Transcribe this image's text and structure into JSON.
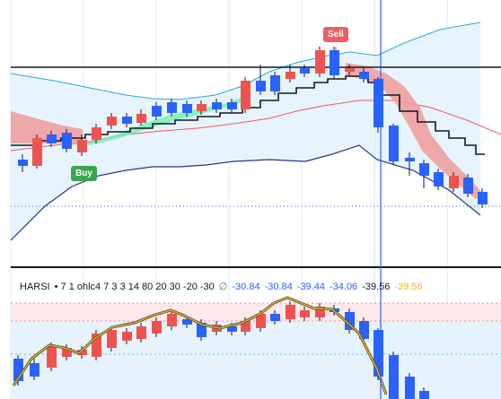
{
  "signals": {
    "sell": "Sell",
    "buy": "Buy"
  },
  "indicator_legend": {
    "name": "HARSI",
    "settings": "• 7 1 ohlc4 7 3 3 14 80 20 30 -20 -30",
    "hide_icon": "∅",
    "values": [
      "-30.84",
      "-30.84",
      "-39.44",
      "-34.06",
      "-39.56",
      "-39.56"
    ]
  },
  "colors": {
    "bull": "#ef5350",
    "bear": "#2962ff",
    "crosshair": "#2962ff",
    "band_fill": "#e3f2fd",
    "cloud_green": "#69f0ae",
    "cloud_red": "#ef9a9a",
    "rsi_line": "#e8b623"
  }
}
